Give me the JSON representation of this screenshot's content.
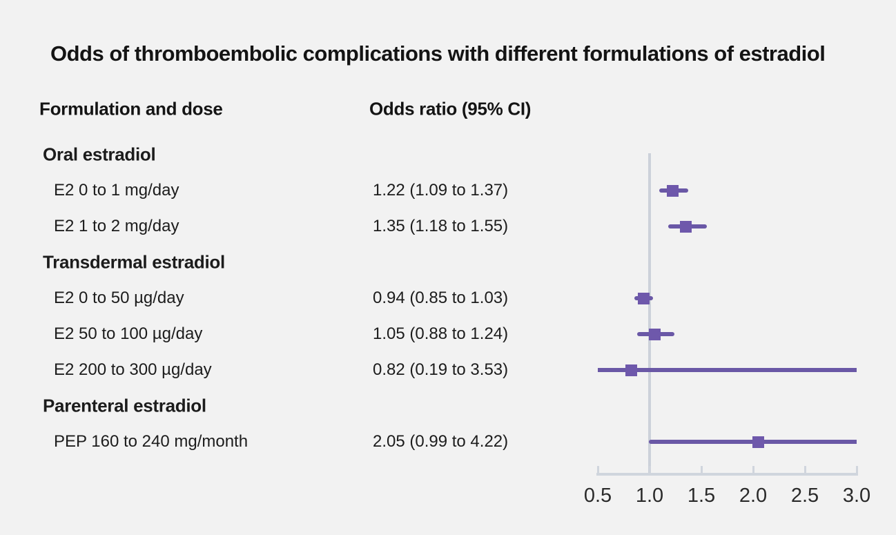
{
  "title": "Odds of thromboembolic complications with different formulations of estradiol",
  "columns": {
    "formulation": "Formulation and dose",
    "odds_ratio": "Odds ratio (95% CI)"
  },
  "colors": {
    "background": "#f2f2f2",
    "text": "#1c1c1c",
    "ci_bar": "#6a58a6",
    "marker": "#6e58ab",
    "axis": "#d0d5dd",
    "reference_line": "#ccd1da"
  },
  "chart_data": {
    "type": "forest",
    "title": "Odds of thromboembolic complications with different formulations of estradiol",
    "xlabel": "Odds ratio",
    "xlim": [
      0.5,
      3.0
    ],
    "reference_line": 1.0,
    "ticks": [
      0.5,
      1.0,
      1.5,
      2.0,
      2.5,
      3.0
    ],
    "tick_labels": [
      "0.5",
      "1.0",
      "1.5",
      "2.0",
      "2.5",
      "3.0"
    ],
    "grid": false,
    "legend": "none",
    "rows": [
      {
        "kind": "group",
        "label": "Oral estradiol"
      },
      {
        "kind": "item",
        "label": "E2 0 to 1 mg/day",
        "display": "1.22 (1.09 to 1.37)",
        "or": 1.22,
        "lo": 1.09,
        "hi": 1.37
      },
      {
        "kind": "item",
        "label": "E2 1 to 2 mg/day",
        "display": "1.35 (1.18 to 1.55)",
        "or": 1.35,
        "lo": 1.18,
        "hi": 1.55
      },
      {
        "kind": "group",
        "label": "Transdermal estradiol"
      },
      {
        "kind": "item",
        "label": "E2 0 to 50 µg/day",
        "display": "0.94 (0.85 to 1.03)",
        "or": 0.94,
        "lo": 0.85,
        "hi": 1.03
      },
      {
        "kind": "item",
        "label": "E2 50 to 100 µg/day",
        "display": "1.05 (0.88 to 1.24)",
        "or": 1.05,
        "lo": 0.88,
        "hi": 1.24
      },
      {
        "kind": "item",
        "label": "E2 200 to 300 µg/day",
        "display": "0.82 (0.19 to 3.53)",
        "or": 0.82,
        "lo": 0.19,
        "hi": 3.53
      },
      {
        "kind": "group",
        "label": "Parenteral estradiol"
      },
      {
        "kind": "item",
        "label": "PEP 160 to 240 mg/month",
        "display": "2.05 (0.99 to 4.22)",
        "or": 2.05,
        "lo": 0.99,
        "hi": 4.22
      }
    ]
  }
}
